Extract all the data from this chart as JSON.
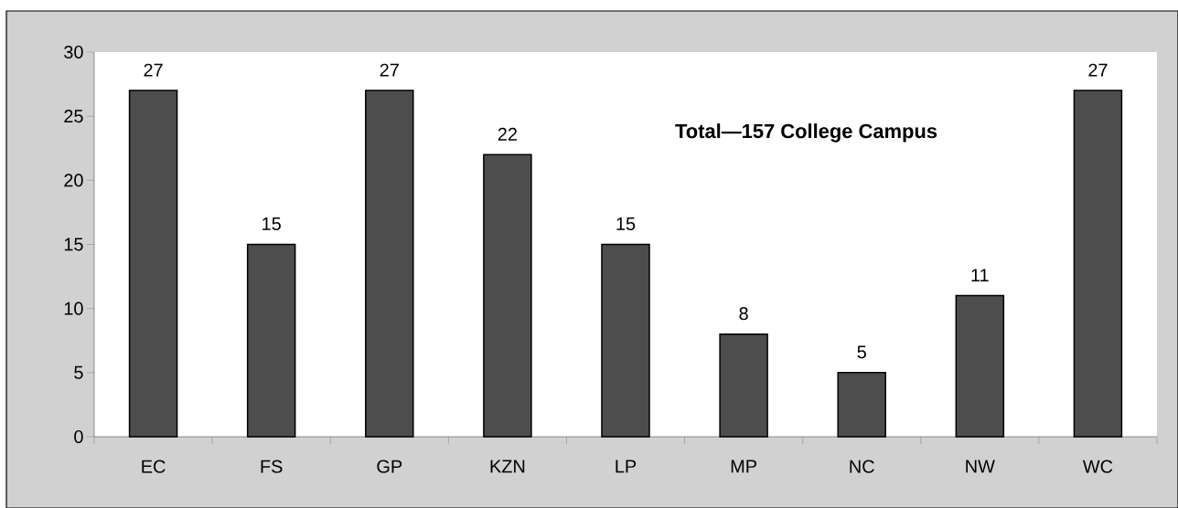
{
  "chart_data": {
    "type": "bar",
    "categories": [
      "EC",
      "FS",
      "GP",
      "KZN",
      "LP",
      "MP",
      "NC",
      "NW",
      "WC"
    ],
    "values": [
      27,
      15,
      27,
      22,
      15,
      8,
      5,
      11,
      27
    ],
    "color": "#4d4d4d",
    "ylim": [
      0,
      30
    ],
    "yticks": [
      0,
      5,
      10,
      15,
      20,
      25,
      30
    ],
    "data_labels": true,
    "annotations": [
      "Total—157 College Campus"
    ]
  }
}
